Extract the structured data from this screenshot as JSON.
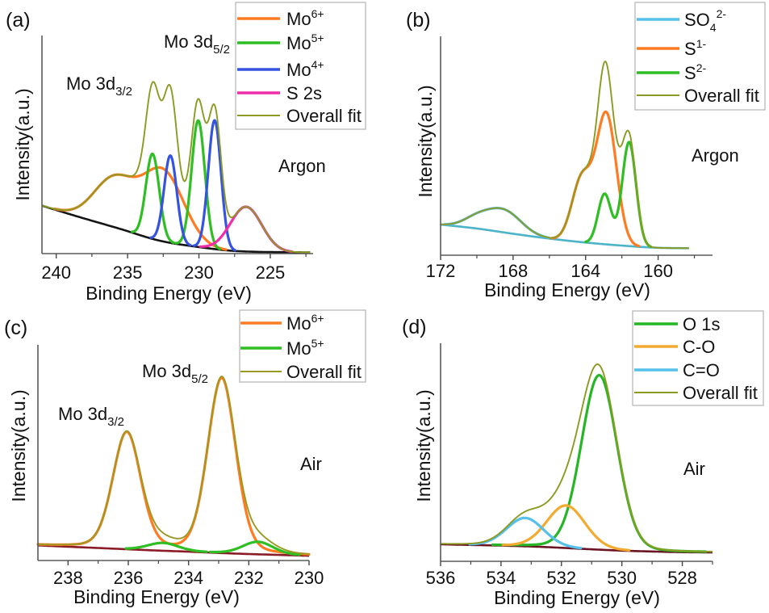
{
  "chart_data": [
    {
      "panel_label": "(a)",
      "type": "line",
      "title": "",
      "xlabel": "Binding Energy (eV)",
      "ylabel": "Intensity(a.u.)",
      "xlim": [
        241,
        222
      ],
      "ylim": [
        0,
        100
      ],
      "x_reversed": true,
      "x_data_range": [
        241,
        222.2
      ],
      "grid": false,
      "legend_position": "top-right",
      "xticks_major": [
        240,
        235,
        230,
        225
      ],
      "xtick_labels": [
        "240",
        "235",
        "230",
        "225"
      ],
      "xticks_minor": [
        237.5,
        232.5,
        227.5,
        222.5
      ],
      "peak_shape_lorentzian_fraction": 0,
      "annotations": [
        {
          "base": "Mo 3d",
          "sub": "5/2"
        },
        {
          "base": "Mo 3d",
          "sub": "3/2"
        },
        {
          "base": "Argon"
        }
      ],
      "background": {
        "name": "Background",
        "color": "#151515",
        "points": [
          [
            241,
            22
          ],
          [
            238.5,
            17
          ],
          [
            235.5,
            11.3
          ],
          [
            232.8,
            6
          ],
          [
            230,
            3
          ],
          [
            227.2,
            1.1
          ],
          [
            222,
            0.5
          ]
        ]
      },
      "series": [
        {
          "name": "Mo6+",
          "label": {
            "base": "Mo",
            "sup": "6+"
          },
          "color": "#ff7b22",
          "peaks": [
            {
              "center": 235.9,
              "amplitude": 22,
              "fwhm": 3.4
            },
            {
              "center": 232.5,
              "amplitude": 32,
              "fwhm": 3.4
            }
          ]
        },
        {
          "name": "Mo5+",
          "label": {
            "base": "Mo",
            "sup": "5+"
          },
          "color": "#2fbe23",
          "peaks": [
            {
              "center": 233.25,
              "amplitude": 39,
              "fwhm": 1.1
            },
            {
              "center": 230.05,
              "amplitude": 58,
              "fwhm": 1.1
            }
          ]
        },
        {
          "name": "Mo4+",
          "label": {
            "base": "Mo",
            "sup": "4+"
          },
          "color": "#3553e0",
          "peaks": [
            {
              "center": 232.0,
              "amplitude": 40,
              "fwhm": 1.05
            },
            {
              "center": 228.9,
              "amplitude": 59,
              "fwhm": 1.05
            }
          ]
        },
        {
          "name": "S 2s",
          "label": {
            "base": "S 2s"
          },
          "color": "#ee2ea8",
          "peaks": [
            {
              "center": 226.7,
              "amplitude": 20.5,
              "fwhm": 2.6
            }
          ]
        }
      ],
      "overall_fit": {
        "name": "Overall fit",
        "label": {
          "base": "Overall fit"
        },
        "color": "#8c9a22",
        "definition": "sum of components + background"
      }
    },
    {
      "panel_label": "(b)",
      "type": "line",
      "title": "",
      "xlabel": "Binding Energy (eV)",
      "ylabel": "Intensity(a.u.)",
      "xlim": [
        172,
        157
      ],
      "ylim": [
        0,
        100
      ],
      "x_reversed": true,
      "x_data_range": [
        172,
        158.3
      ],
      "grid": false,
      "legend_position": "top-right",
      "xticks_major": [
        172,
        168,
        164,
        160
      ],
      "xtick_labels": [
        "172",
        "168",
        "164",
        "160"
      ],
      "xticks_minor": [
        170,
        166,
        162,
        158
      ],
      "peak_shape_lorentzian_fraction": 0,
      "annotations": [
        {
          "base": "Argon"
        }
      ],
      "background": {
        "name": "Background",
        "color": "#4db3c8",
        "points": [
          [
            172,
            14
          ],
          [
            170,
            12.2
          ],
          [
            168,
            9.8
          ],
          [
            166,
            7.6
          ],
          [
            164,
            5.8
          ],
          [
            162,
            4.4
          ],
          [
            160,
            3.4
          ],
          [
            158,
            3.2
          ],
          [
            157,
            3.2
          ]
        ]
      },
      "series": [
        {
          "name": "SO42-",
          "label": {
            "base": "SO",
            "sub": "4",
            "sup": "2-"
          },
          "color": "#55c0ea",
          "peaks": [
            {
              "center": 170.0,
              "amplitude": 4.3,
              "fwhm": 1.8
            },
            {
              "center": 168.5,
              "amplitude": 10,
              "fwhm": 2.2
            }
          ]
        },
        {
          "name": "S1-",
          "label": {
            "base": "S",
            "sup": "1-"
          },
          "color": "#ff7b22",
          "peaks": [
            {
              "center": 164.2,
              "amplitude": 29,
              "fwhm": 1.3
            },
            {
              "center": 162.85,
              "amplitude": 59,
              "fwhm": 1.3
            }
          ]
        },
        {
          "name": "S2-",
          "label": {
            "base": "S",
            "sup": "2-"
          },
          "color": "#2fbe23",
          "peaks": [
            {
              "center": 162.95,
              "amplitude": 23,
              "fwhm": 0.85
            },
            {
              "center": 161.6,
              "amplitude": 47.5,
              "fwhm": 0.9
            }
          ]
        }
      ],
      "overall_fit": {
        "name": "Overall fit",
        "label": {
          "base": "Overall fit"
        },
        "color": "#8c9a22",
        "definition": "sum of components + background"
      }
    },
    {
      "panel_label": "(c)",
      "type": "line",
      "title": "",
      "xlabel": "Binding Energy (eV)",
      "ylabel": "Intensity(a.u.)",
      "xlim": [
        239,
        230
      ],
      "ylim": [
        0,
        100
      ],
      "x_reversed": true,
      "x_data_range": [
        239,
        230
      ],
      "grid": false,
      "legend_position": "top-right",
      "xticks_major": [
        238,
        236,
        234,
        232,
        230
      ],
      "xtick_labels": [
        "238",
        "236",
        "234",
        "232",
        "230"
      ],
      "xticks_minor": [
        237,
        235,
        233,
        231
      ],
      "peak_shape_lorentzian_fraction": 0.2,
      "annotations": [
        {
          "base": "Mo 3d",
          "sub": "5/2"
        },
        {
          "base": "Mo 3d",
          "sub": "3/2"
        },
        {
          "base": "Air"
        }
      ],
      "background": {
        "name": "Background",
        "color": "#8a1c28",
        "points": [
          [
            239,
            7
          ],
          [
            238,
            6.4
          ],
          [
            237,
            5.8
          ],
          [
            236,
            5.2
          ],
          [
            235,
            4.6
          ],
          [
            234,
            4.1
          ],
          [
            233,
            3.5
          ],
          [
            232,
            3
          ],
          [
            231,
            2.6
          ],
          [
            230,
            2.2
          ]
        ]
      },
      "series": [
        {
          "name": "Mo6+",
          "label": {
            "base": "Mo",
            "sup": "6+"
          },
          "color": "#ff7b22",
          "peaks": [
            {
              "center": 236.05,
              "amplitude": 54,
              "fwhm": 1.1
            },
            {
              "center": 232.9,
              "amplitude": 81,
              "fwhm": 1.1
            }
          ]
        },
        {
          "name": "Mo5+",
          "label": {
            "base": "Mo",
            "sup": "5+"
          },
          "color": "#2fbe23",
          "peaks": [
            {
              "center": 234.85,
              "amplitude": 3.6,
              "fwhm": 1.2
            },
            {
              "center": 231.7,
              "amplitude": 5.8,
              "fwhm": 1.2
            }
          ]
        }
      ],
      "overall_fit": {
        "name": "Overall fit",
        "label": {
          "base": "Overall fit"
        },
        "color": "#9a9a22",
        "definition": "sum of components + background"
      }
    },
    {
      "panel_label": "(d)",
      "type": "line",
      "title": "",
      "xlabel": "Binding Energy (eV)",
      "ylabel": "Intensity(a.u.)",
      "xlim": [
        536,
        527
      ],
      "ylim": [
        0,
        100
      ],
      "x_reversed": true,
      "x_data_range": [
        536,
        527
      ],
      "grid": false,
      "legend_position": "top-right",
      "xticks_major": [
        536,
        534,
        532,
        530,
        528
      ],
      "xtick_labels": [
        "536",
        "534",
        "532",
        "530",
        "528"
      ],
      "xticks_minor": [
        535,
        533,
        531,
        529,
        527
      ],
      "peak_shape_lorentzian_fraction": 0.1,
      "annotations": [
        {
          "base": "Air"
        }
      ],
      "background": {
        "name": "Background",
        "color": "#6a1424",
        "points": [
          [
            536,
            7.8
          ],
          [
            535,
            7.5
          ],
          [
            534,
            7.2
          ],
          [
            533,
            6.8
          ],
          [
            532,
            6.2
          ],
          [
            531,
            5.5
          ],
          [
            530,
            4.9
          ],
          [
            529,
            4.5
          ],
          [
            528,
            4.2
          ],
          [
            527,
            4.1
          ]
        ]
      },
      "series": [
        {
          "name": "O 1s",
          "label": {
            "base": "O 1s"
          },
          "color": "#25b525",
          "peaks": [
            {
              "center": 530.75,
              "amplitude": 80,
              "fwhm": 1.4
            }
          ]
        },
        {
          "name": "C-O",
          "label": {
            "base": "C-O"
          },
          "color": "#f2aa30",
          "peaks": [
            {
              "center": 531.85,
              "amplitude": 19.5,
              "fwhm": 1.5
            }
          ]
        },
        {
          "name": "C=O",
          "label": {
            "base": "C=O"
          },
          "color": "#55c0ea",
          "peaks": [
            {
              "center": 533.2,
              "amplitude": 13,
              "fwhm": 1.45
            }
          ]
        }
      ],
      "overall_fit": {
        "name": "Overall fit",
        "label": {
          "base": "Overall fit"
        },
        "color": "#8c9a22",
        "definition": "sum of components + background"
      }
    }
  ]
}
